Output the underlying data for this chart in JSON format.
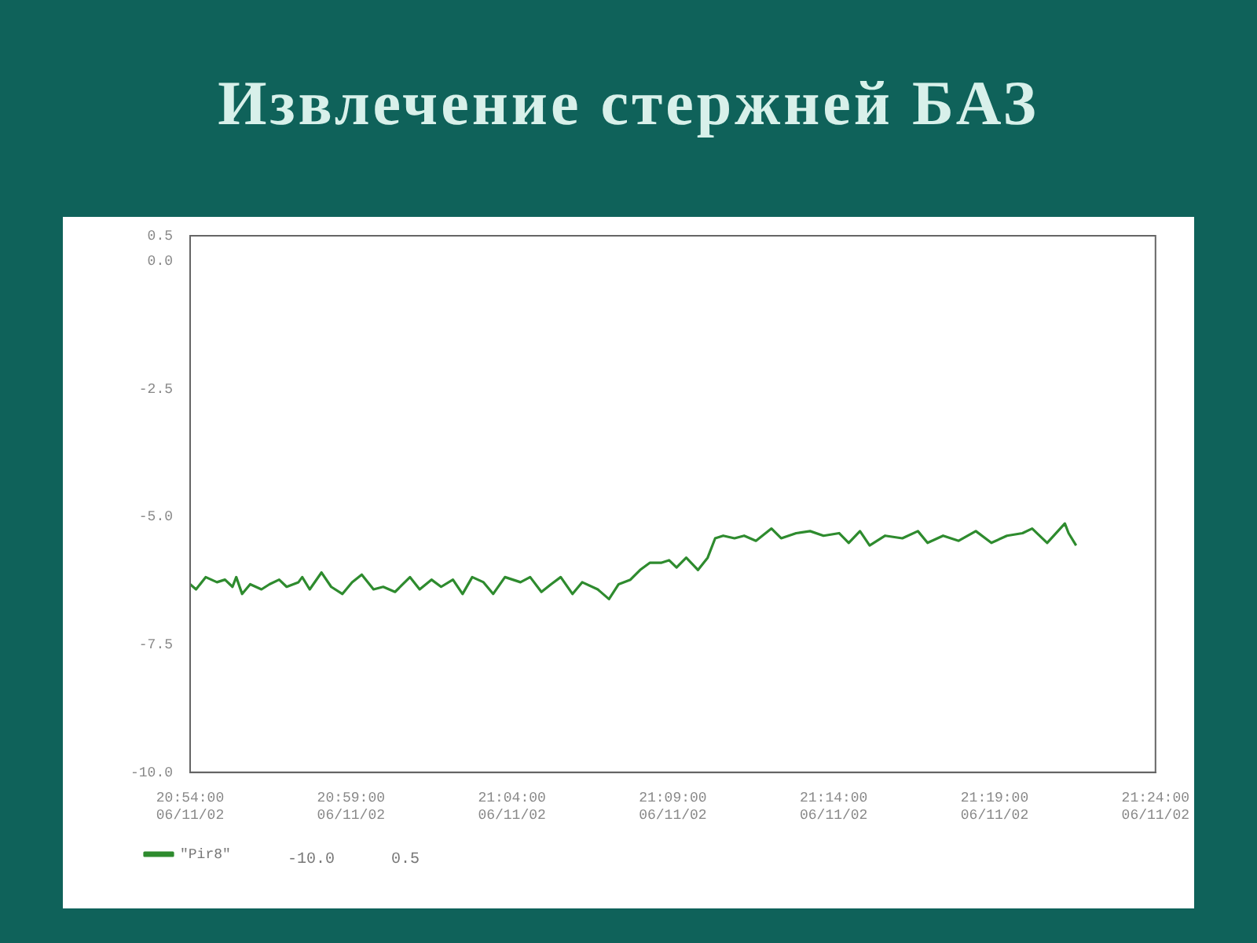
{
  "chart_data": {
    "type": "line",
    "title": "Извлечение стержней БАЗ",
    "x": [
      "--06-11T20:54:00",
      "--06-11T20:54:11",
      "--06-11T20:54:29",
      "--06-11T20:54:50",
      "--06-11T20:55:05",
      "--06-11T20:55:19",
      "--06-11T20:55:26",
      "--06-11T20:55:37",
      "--06-11T20:55:52",
      "--06-11T20:56:13",
      "--06-11T20:56:28",
      "--06-11T20:56:46",
      "--06-11T20:57:00",
      "--06-11T20:57:22",
      "--06-11T20:57:29",
      "--06-11T20:57:43",
      "--06-11T20:58:05",
      "--06-11T20:58:23",
      "--06-11T20:58:44",
      "--06-11T20:59:02",
      "--06-11T20:59:20",
      "--06-11T20:59:42",
      "--06-11T21:00:00",
      "--06-11T21:00:22",
      "--06-11T21:00:50",
      "--06-11T21:01:08",
      "--06-11T21:01:30",
      "--06-11T21:01:48",
      "--06-11T21:02:10",
      "--06-11T21:02:28",
      "--06-11T21:02:46",
      "--06-11T21:03:07",
      "--06-11T21:03:25",
      "--06-11T21:03:47",
      "--06-11T21:04:16",
      "--06-11T21:04:34",
      "--06-11T21:04:55",
      "--06-11T21:05:13",
      "--06-11T21:05:31",
      "--06-11T21:05:53",
      "--06-11T21:06:11",
      "--06-11T21:06:40",
      "--06-11T21:07:01",
      "--06-11T21:07:19",
      "--06-11T21:07:41",
      "--06-11T21:07:59",
      "--06-11T21:08:17",
      "--06-11T21:08:38",
      "--06-11T21:08:53",
      "--06-11T21:09:07",
      "--06-11T21:09:25",
      "--06-11T21:09:47",
      "--06-11T21:10:05",
      "--06-11T21:10:19",
      "--06-11T21:10:34",
      "--06-11T21:10:55",
      "--06-11T21:11:13",
      "--06-11T21:11:35",
      "--06-11T21:12:04",
      "--06-11T21:12:22",
      "--06-11T21:12:50",
      "--06-11T21:13:16",
      "--06-11T21:13:41",
      "--06-11T21:14:10",
      "--06-11T21:14:28",
      "--06-11T21:14:49",
      "--06-11T21:15:07",
      "--06-11T21:15:36",
      "--06-11T21:16:08",
      "--06-11T21:16:37",
      "--06-11T21:16:55",
      "--06-11T21:17:24",
      "--06-11T21:17:53",
      "--06-11T21:18:25",
      "--06-11T21:18:54",
      "--06-11T21:19:23",
      "--06-11T21:19:52",
      "--06-11T21:20:10",
      "--06-11T21:20:38",
      "--06-11T21:21:11",
      "--06-11T21:21:18",
      "--06-11T21:21:32"
    ],
    "series": [
      {
        "name": "\"Pir8\"",
        "color": "#2e8b2e",
        "values": [
          -6.32,
          -6.42,
          -6.18,
          -6.28,
          -6.23,
          -6.37,
          -6.18,
          -6.51,
          -6.32,
          -6.42,
          -6.32,
          -6.23,
          -6.37,
          -6.28,
          -6.18,
          -6.42,
          -6.09,
          -6.37,
          -6.51,
          -6.28,
          -6.13,
          -6.42,
          -6.37,
          -6.47,
          -6.18,
          -6.42,
          -6.23,
          -6.37,
          -6.23,
          -6.51,
          -6.18,
          -6.28,
          -6.51,
          -6.18,
          -6.28,
          -6.18,
          -6.47,
          -6.32,
          -6.18,
          -6.51,
          -6.28,
          -6.42,
          -6.61,
          -6.32,
          -6.23,
          -6.04,
          -5.9,
          -5.9,
          -5.85,
          -5.99,
          -5.8,
          -6.04,
          -5.8,
          -5.42,
          -5.37,
          -5.42,
          -5.37,
          -5.47,
          -5.23,
          -5.42,
          -5.32,
          -5.28,
          -5.37,
          -5.32,
          -5.51,
          -5.28,
          -5.56,
          -5.37,
          -5.42,
          -5.28,
          -5.51,
          -5.37,
          -5.47,
          -5.28,
          -5.51,
          -5.37,
          -5.32,
          -5.23,
          -5.51,
          -5.13,
          -5.32,
          -5.56
        ]
      }
    ],
    "xlim": [
      "--06-11T20:54:00",
      "--06-11T21:24:00"
    ],
    "xticks": [
      {
        "value": "--06-11T20:54:00",
        "label": "20:54:00\n06/11/02"
      },
      {
        "value": "--06-11T20:59:00",
        "label": "20:59:00\n06/11/02"
      },
      {
        "value": "--06-11T21:04:00",
        "label": "21:04:00\n06/11/02"
      },
      {
        "value": "--06-11T21:09:00",
        "label": "21:09:00\n06/11/02"
      },
      {
        "value": "--06-11T21:14:00",
        "label": "21:14:00\n06/11/02"
      },
      {
        "value": "--06-11T21:19:00",
        "label": "21:19:00\n06/11/02"
      },
      {
        "value": "--06-11T21:24:00",
        "label": "21:24:00\n06/11/02"
      }
    ],
    "ylim": [
      -10,
      0.5
    ],
    "yticks": [
      {
        "value": -10,
        "label": "-10.0"
      },
      {
        "value": -7.5,
        "label": "-7.5"
      },
      {
        "value": -5,
        "label": "-5.0"
      },
      {
        "value": -2.5,
        "label": "-2.5"
      },
      {
        "value": 0,
        "label": "0.0"
      },
      {
        "value": 0.5,
        "label": "0.5"
      }
    ],
    "grid": false,
    "legend": "bottom left",
    "marker": "none",
    "line_style": "solid",
    "annotations": [
      "-10.0      0.5"
    ]
  }
}
